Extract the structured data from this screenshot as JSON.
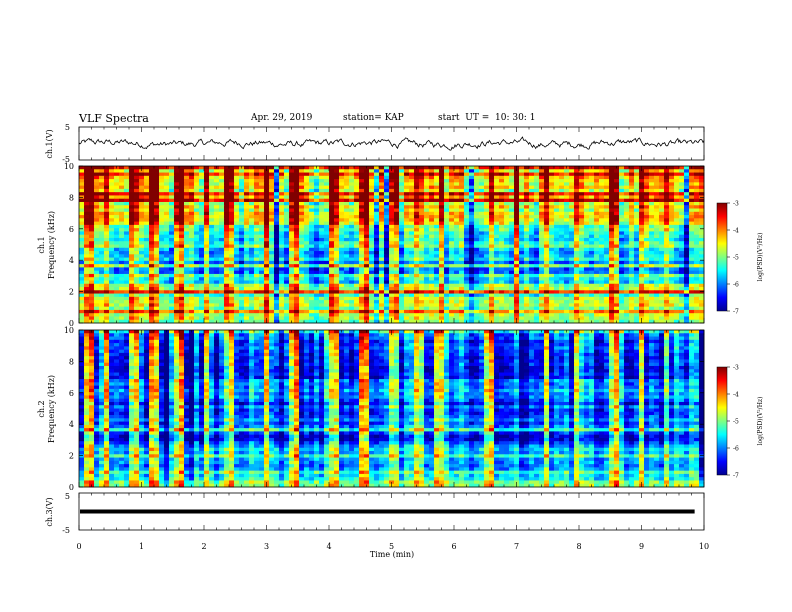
{
  "header": {
    "title": "VLF Spectra",
    "date": "Apr. 29, 2019",
    "station": "station= KAP",
    "start_label": "start  UT =",
    "start_time": "10: 30: 1"
  },
  "colors": {
    "colormap": [
      "#00008f",
      "#0000ff",
      "#0080ff",
      "#00ffff",
      "#80ff80",
      "#ffff00",
      "#ff8000",
      "#ff0000",
      "#800000"
    ],
    "trace": "#000000",
    "background": "#ffffff"
  },
  "chart_data": [
    {
      "type": "line",
      "panel": "ch1 waveform",
      "ylabel": "ch.1(V)",
      "ylim": [
        -5,
        5
      ],
      "yticks": [
        "5",
        "-5"
      ],
      "xlim": [
        0,
        10
      ],
      "description_value": "noisy broadband waveform, amplitude about ±2 V"
    },
    {
      "type": "heatmap",
      "panel": "ch1 spectrogram",
      "ylabel": "ch.1\nFrequency (kHz)",
      "ylabel_line1": "ch.1",
      "ylabel_line2": "Frequency (kHz)",
      "ylim": [
        0,
        10
      ],
      "yticks": [
        "0",
        "2",
        "4",
        "6",
        "8",
        "10"
      ],
      "colorbar": {
        "label": "log(PSD)(V²/Hz)",
        "range": [
          -7,
          -3
        ],
        "ticks": [
          "-3",
          "-4",
          "-5",
          "-6",
          "-7"
        ]
      },
      "band_profile": [
        [
          0,
          0.3
        ],
        [
          0.3,
          0.55
        ],
        [
          0.8,
          0.45
        ],
        [
          1.2,
          0.55
        ],
        [
          1.6,
          0.45
        ],
        [
          2.1,
          0.6
        ],
        [
          2.4,
          0.5
        ],
        [
          2.8,
          0.3
        ],
        [
          3.1,
          0.12
        ],
        [
          3.4,
          0.15
        ],
        [
          3.7,
          0.25
        ],
        [
          4.0,
          0.32
        ],
        [
          4.4,
          0.3
        ],
        [
          4.9,
          0.38
        ],
        [
          5.4,
          0.42
        ],
        [
          6.0,
          0.5
        ],
        [
          6.5,
          0.55
        ],
        [
          7.0,
          0.58
        ],
        [
          8.0,
          0.62
        ],
        [
          9.0,
          0.66
        ],
        [
          10,
          0.7
        ]
      ],
      "spike_times_min": [
        0.15,
        0.45,
        0.9,
        1.2,
        1.6,
        2.05,
        2.4,
        3.0,
        3.45,
        4.1,
        4.55,
        5.05,
        5.45,
        5.75,
        6.55,
        7.0,
        7.5,
        7.95,
        8.55,
        9.0,
        9.4
      ]
    },
    {
      "type": "heatmap",
      "panel": "ch2 spectrogram",
      "ylabel": "ch.2\nFrequency (kHz)",
      "ylabel_line1": "ch.2",
      "ylabel_line2": "Frequency (kHz)",
      "ylim": [
        0,
        10
      ],
      "yticks": [
        "0",
        "2",
        "4",
        "6",
        "8",
        "10"
      ],
      "colorbar": {
        "label": "log(PSD)(V²/Hz)",
        "range": [
          -7,
          -3
        ],
        "ticks": [
          "-3",
          "-4",
          "-5",
          "-6",
          "-7"
        ]
      },
      "band_profile": [
        [
          0,
          0.45
        ],
        [
          0.4,
          0.5
        ],
        [
          1.0,
          0.35
        ],
        [
          1.5,
          0.3
        ],
        [
          2.0,
          0.4
        ],
        [
          2.5,
          0.3
        ],
        [
          3.0,
          0.12
        ],
        [
          3.5,
          0.1
        ],
        [
          4.0,
          0.25
        ],
        [
          4.5,
          0.2
        ],
        [
          5.0,
          0.22
        ],
        [
          6.0,
          0.25
        ],
        [
          7.0,
          0.22
        ],
        [
          8.0,
          0.2
        ],
        [
          9.0,
          0.18
        ],
        [
          10,
          0.2
        ]
      ],
      "spike_times_min": [
        0.15,
        0.45,
        0.9,
        1.2,
        1.6,
        2.05,
        2.4,
        3.0,
        3.45,
        4.1,
        4.55,
        5.05,
        5.45,
        5.75,
        6.55,
        7.0,
        7.5,
        7.95,
        8.55,
        9.0,
        9.4
      ]
    },
    {
      "type": "line",
      "panel": "ch3 waveform",
      "ylabel": "ch.3(V)",
      "ylim": [
        -5,
        5
      ],
      "yticks": [
        "5",
        "-5"
      ],
      "xlim": [
        0,
        10
      ],
      "xticks": [
        "0",
        "1",
        "2",
        "3",
        "4",
        "5",
        "6",
        "7",
        "8",
        "9",
        "10"
      ],
      "xlabel": "Time (min)",
      "constant_value": 0
    }
  ]
}
